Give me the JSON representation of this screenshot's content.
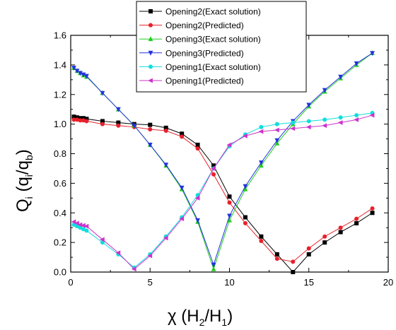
{
  "chart_data": {
    "type": "line",
    "xlabel_main": "χ (H",
    "xlabel_sub1": "2",
    "xlabel_mid": "/H",
    "xlabel_sub2": "1",
    "xlabel_end": ")",
    "ylabel_main": "Q",
    "ylabel_sub1": "i",
    "ylabel_mid": " (q",
    "ylabel_sub2": "i",
    "ylabel_mid2": "/q",
    "ylabel_sub3": "b",
    "ylabel_end": ")",
    "xlim": [
      0,
      20
    ],
    "ylim": [
      0.0,
      1.6
    ],
    "xticks": [
      "0",
      "5",
      "10",
      "15",
      "20"
    ],
    "yticks": [
      "0.0",
      "0.2",
      "0.4",
      "0.6",
      "0.8",
      "1.0",
      "1.2",
      "1.4",
      "1.6"
    ],
    "legend_position": "top-right",
    "grid": false,
    "series": [
      {
        "name": "Opening2(Exact solution)",
        "color": "#000000",
        "marker": "square",
        "x": [
          0.2,
          0.4,
          0.6,
          0.8,
          1.0,
          2,
          3,
          4,
          5,
          6,
          7,
          8,
          9,
          10,
          11,
          12,
          13,
          14,
          15,
          16,
          17,
          18,
          19
        ],
        "y": [
          1.05,
          1.045,
          1.04,
          1.04,
          1.035,
          1.02,
          1.01,
          1.0,
          0.995,
          0.975,
          0.935,
          0.86,
          0.72,
          0.51,
          0.37,
          0.24,
          0.12,
          0.0,
          0.12,
          0.2,
          0.27,
          0.33,
          0.4
        ]
      },
      {
        "name": "Opening2(Predicted)",
        "color": "#e8202a",
        "marker": "circle",
        "x": [
          0.2,
          0.4,
          0.6,
          0.8,
          1.0,
          2,
          3,
          4,
          5,
          6,
          7,
          8,
          9,
          10,
          11,
          12,
          13,
          14,
          15,
          16,
          17,
          18,
          19
        ],
        "y": [
          1.03,
          1.03,
          1.025,
          1.025,
          1.02,
          1.0,
          0.99,
          0.98,
          0.965,
          0.955,
          0.915,
          0.835,
          0.66,
          0.47,
          0.33,
          0.21,
          0.09,
          0.07,
          0.16,
          0.24,
          0.3,
          0.36,
          0.43
        ]
      },
      {
        "name": "Opening3(Exact solution)",
        "color": "#22cc22",
        "marker": "triangle-up",
        "x": [
          0.2,
          0.4,
          0.6,
          0.8,
          1.0,
          2,
          3,
          4,
          5,
          6,
          7,
          8,
          9,
          10,
          11,
          12,
          13,
          14,
          15,
          16,
          17,
          18,
          19
        ],
        "y": [
          1.38,
          1.36,
          1.345,
          1.33,
          1.32,
          1.21,
          1.1,
          0.99,
          0.86,
          0.72,
          0.56,
          0.34,
          0.02,
          0.35,
          0.56,
          0.72,
          0.87,
          1.0,
          1.12,
          1.22,
          1.31,
          1.4,
          1.48
        ]
      },
      {
        "name": "Opening3(Predicted)",
        "color": "#2233dd",
        "marker": "triangle-down",
        "x": [
          0.2,
          0.4,
          0.6,
          0.8,
          1.0,
          2,
          3,
          4,
          5,
          6,
          7,
          8,
          9,
          10,
          11,
          12,
          13,
          14,
          15,
          16,
          17,
          18,
          19
        ],
        "y": [
          1.38,
          1.36,
          1.345,
          1.335,
          1.325,
          1.21,
          1.1,
          0.99,
          0.86,
          0.725,
          0.57,
          0.35,
          0.05,
          0.38,
          0.58,
          0.74,
          0.89,
          1.02,
          1.13,
          1.23,
          1.32,
          1.41,
          1.48
        ]
      },
      {
        "name": "Opening1(Exact solution)",
        "color": "#11dddd",
        "marker": "circle",
        "x": [
          0.2,
          0.4,
          0.6,
          0.8,
          1.0,
          2,
          3,
          4,
          5,
          6,
          7,
          8,
          9,
          10,
          11,
          12,
          13,
          14,
          15,
          16,
          17,
          18,
          19
        ],
        "y": [
          0.32,
          0.31,
          0.3,
          0.29,
          0.28,
          0.2,
          0.12,
          0.03,
          0.12,
          0.24,
          0.37,
          0.52,
          0.7,
          0.85,
          0.93,
          0.98,
          1.0,
          1.01,
          1.02,
          1.03,
          1.045,
          1.06,
          1.075
        ]
      },
      {
        "name": "Opening1(Predicted)",
        "color": "#cc33cc",
        "marker": "triangle-left",
        "x": [
          0.2,
          0.4,
          0.6,
          0.8,
          1.0,
          2,
          3,
          4,
          5,
          6,
          7,
          8,
          9,
          10,
          11,
          12,
          13,
          14,
          15,
          16,
          17,
          18,
          19
        ],
        "y": [
          0.34,
          0.33,
          0.32,
          0.315,
          0.31,
          0.22,
          0.13,
          0.02,
          0.11,
          0.23,
          0.36,
          0.5,
          0.7,
          0.86,
          0.92,
          0.95,
          0.96,
          0.97,
          0.98,
          0.99,
          1.01,
          1.03,
          1.06
        ]
      }
    ]
  }
}
